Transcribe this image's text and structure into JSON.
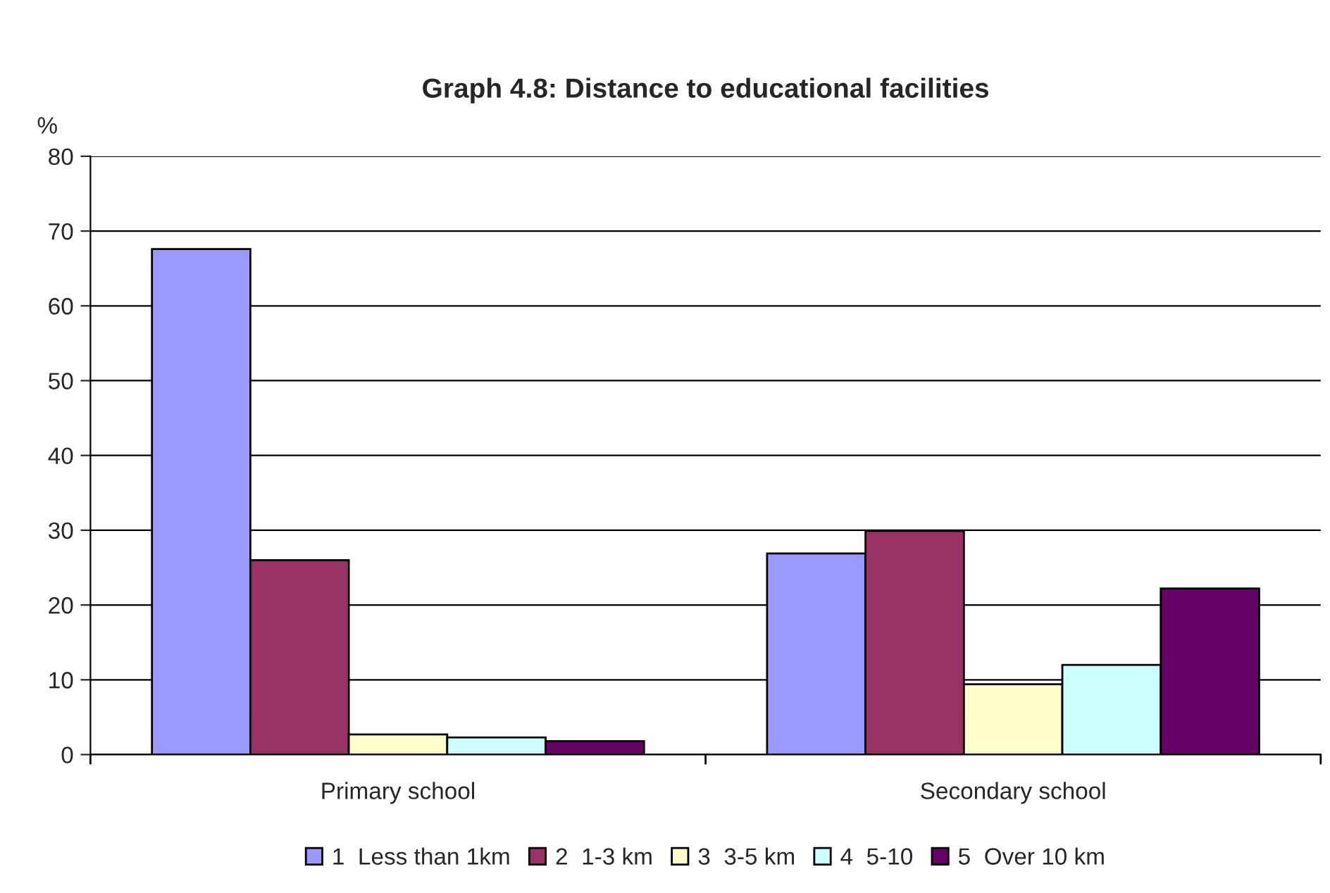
{
  "chart_data": {
    "type": "bar",
    "title": "Graph 4.8: Distance to educational facilities",
    "ylabel": "%",
    "categories": [
      "Primary school",
      "Secondary school"
    ],
    "series": [
      {
        "name": "1  Less than 1km",
        "color": "#9999ff",
        "values": [
          67.6,
          26.9
        ]
      },
      {
        "name": "2  1-3 km",
        "color": "#993366",
        "values": [
          26.0,
          29.9
        ]
      },
      {
        "name": "3  3-5 km",
        "color": "#ffffcc",
        "values": [
          2.7,
          9.4
        ]
      },
      {
        "name": "4  5-10",
        "color": "#ccffff",
        "values": [
          2.3,
          12.0
        ]
      },
      {
        "name": "5  Over 10 km",
        "color": "#660066",
        "values": [
          1.8,
          22.2
        ]
      }
    ],
    "ylim": [
      0,
      80
    ],
    "yticks": [
      0,
      10,
      20,
      30,
      40,
      50,
      60,
      70,
      80
    ],
    "grid": "y",
    "legend": "bottom"
  }
}
